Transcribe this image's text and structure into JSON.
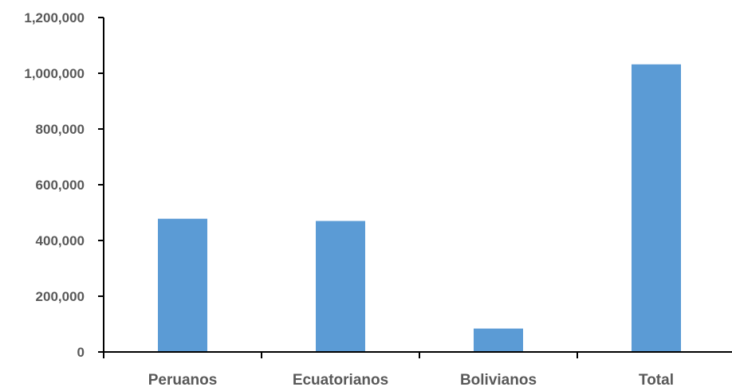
{
  "chart_data": {
    "type": "bar",
    "title": "",
    "xlabel": "",
    "ylabel": "",
    "categories": [
      "Peruanos",
      "Ecuatorianos",
      "Bolivianos",
      "Total"
    ],
    "values": [
      478000,
      470000,
      84000,
      1032000
    ],
    "ylim": [
      0,
      1200000
    ],
    "yticks": [
      0,
      200000,
      400000,
      600000,
      800000,
      1000000,
      1200000
    ],
    "ytick_labels": [
      "0",
      "200,000",
      "400,000",
      "600,000",
      "800,000",
      "1,000,000",
      "1,200,000"
    ],
    "grid": false,
    "legend": "none",
    "bar_color": "#5B9BD5",
    "axis_color": "#000000",
    "label_color": "#595959"
  }
}
